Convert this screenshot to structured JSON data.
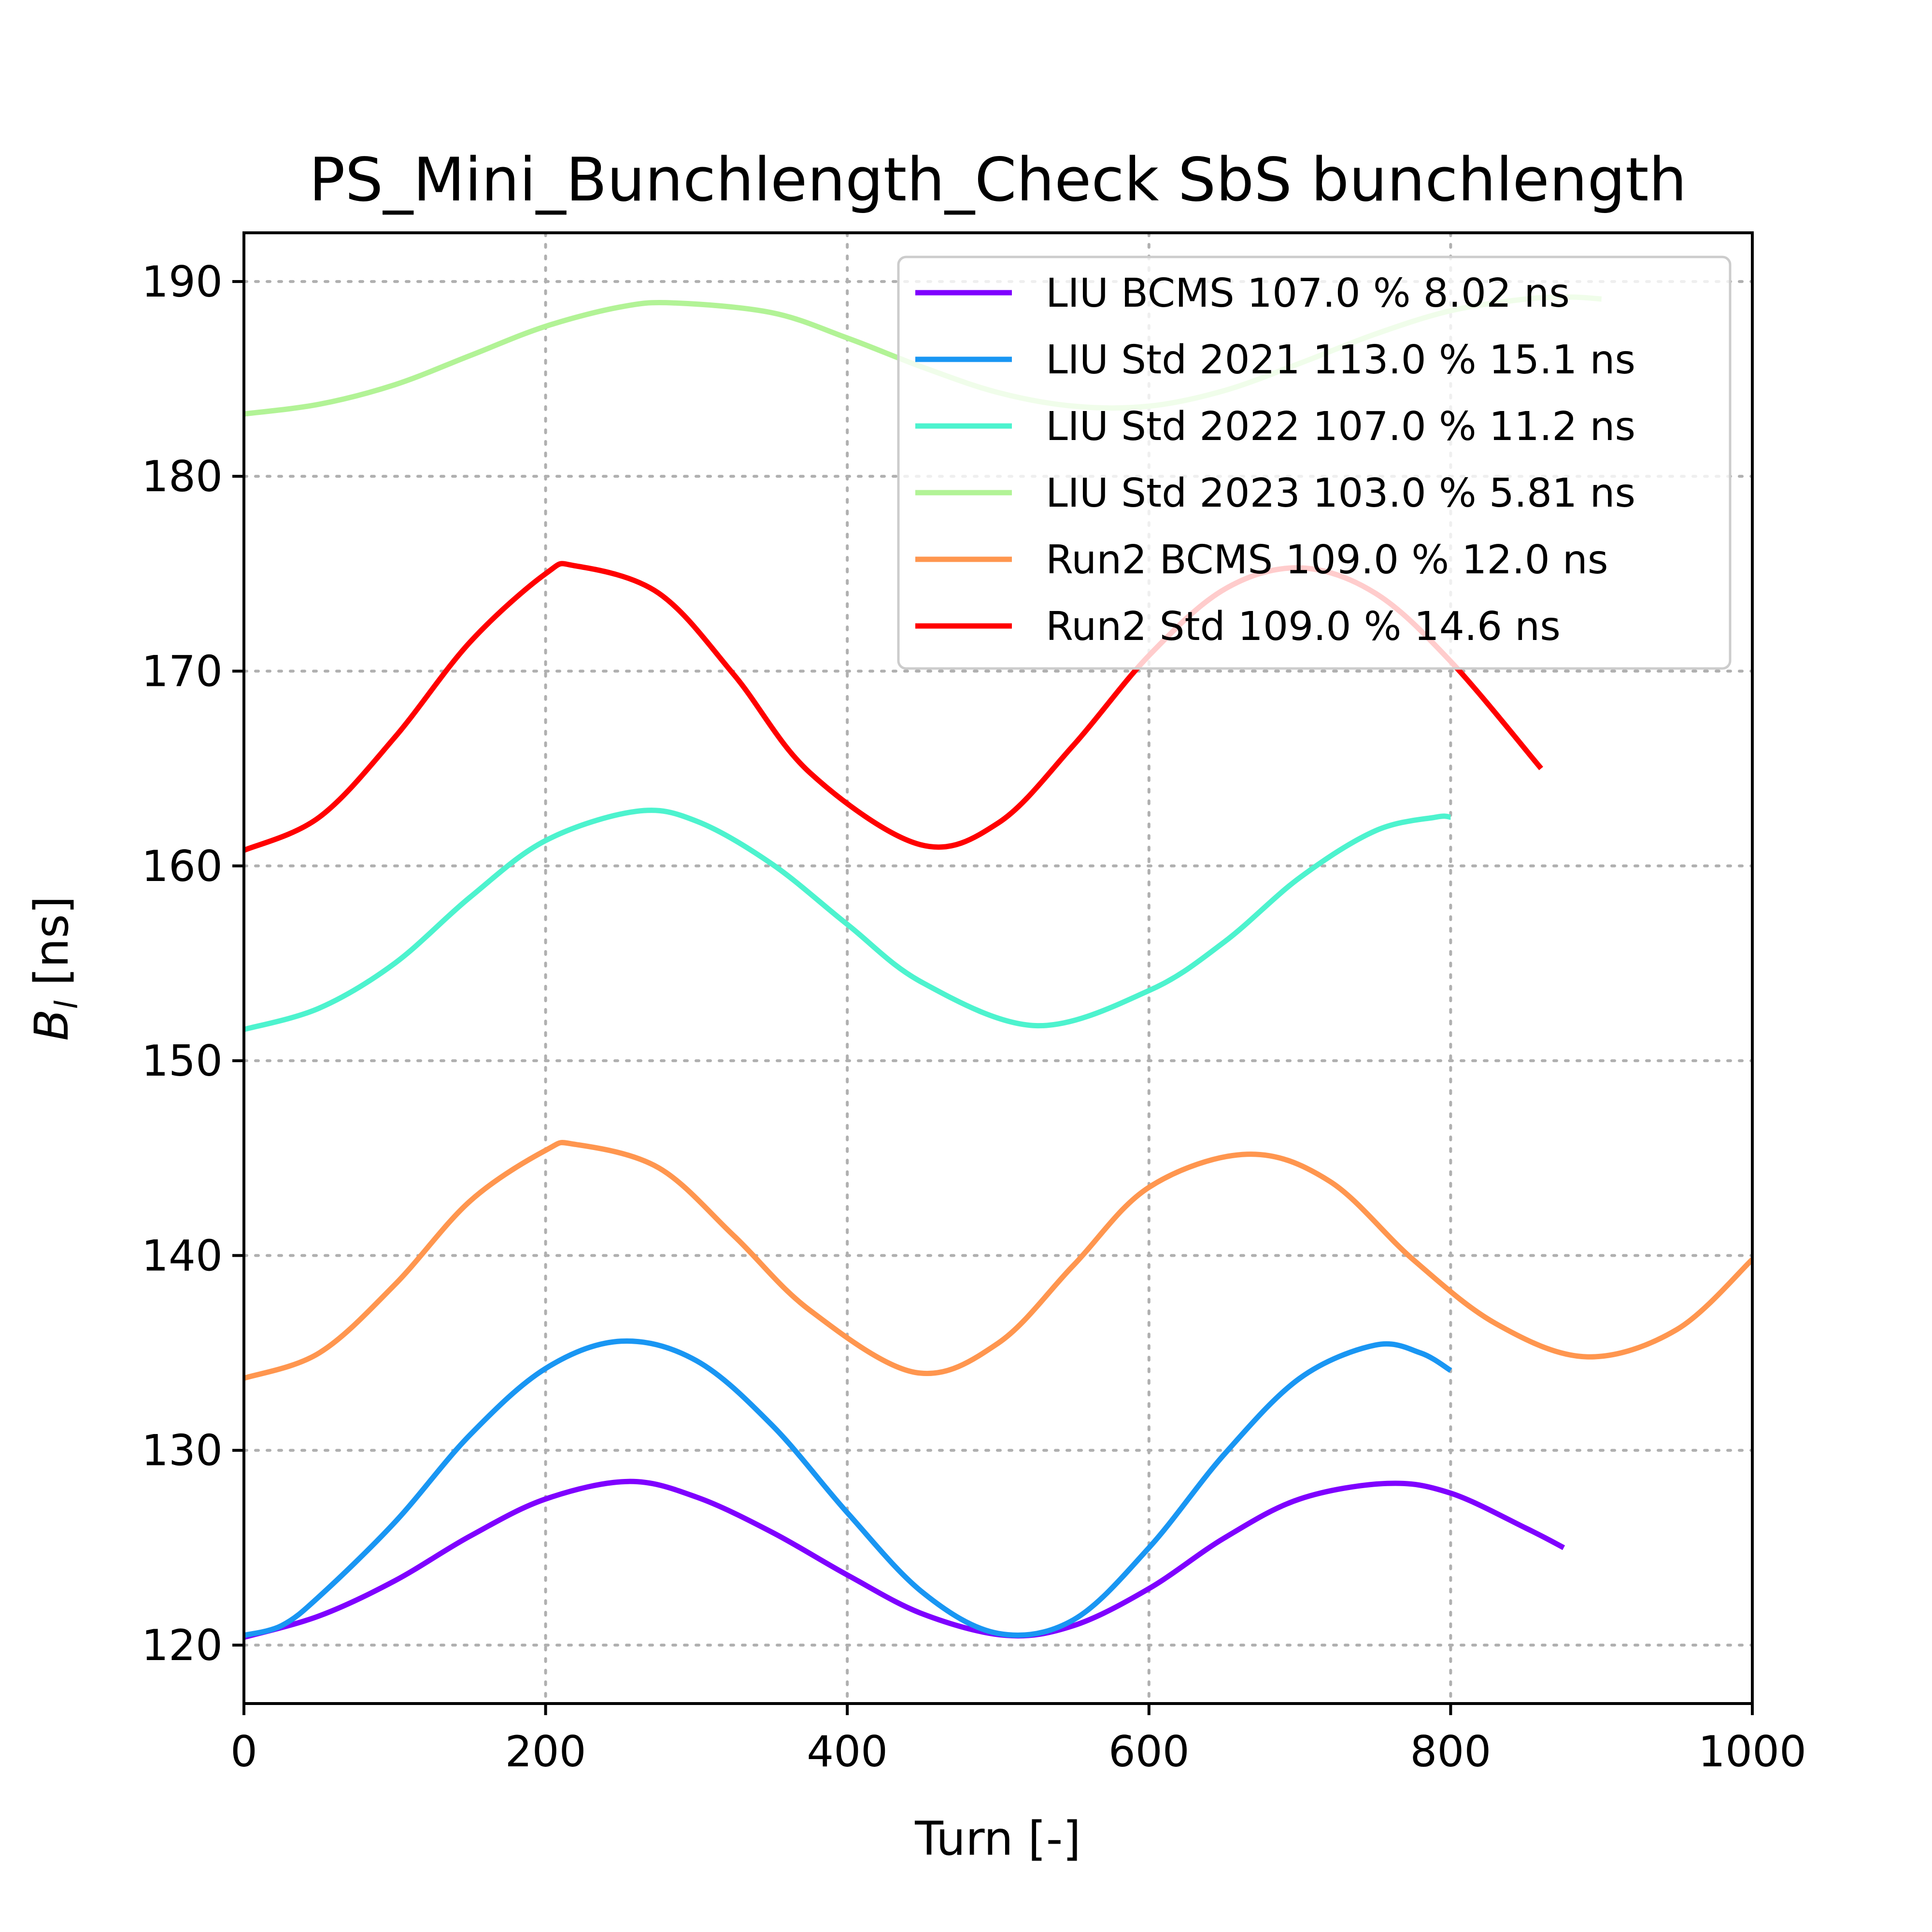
{
  "chart_data": {
    "type": "line",
    "title": "PS_Mini_Bunchlength_Check SbS bunchlength",
    "xlabel": "Turn [-]",
    "ylabel": "B_l [ns]",
    "ylabel_main": "B",
    "ylabel_sub": "l",
    "ylabel_rest": " [ns]",
    "xlim": [
      0,
      1000
    ],
    "ylim": [
      117,
      192.5
    ],
    "xticks": [
      0,
      200,
      400,
      600,
      800,
      1000
    ],
    "yticks": [
      120,
      130,
      140,
      150,
      160,
      170,
      180,
      190
    ],
    "grid": true,
    "legend_position": "top-right",
    "series": [
      {
        "name": "LIU BCMS 107.0 % 8.02 ns",
        "color": "#7f00ff",
        "x": [
          0,
          50,
          100,
          150,
          200,
          255,
          300,
          350,
          400,
          450,
          505,
          550,
          600,
          650,
          700,
          758,
          800,
          850,
          875
        ],
        "y": [
          120.4,
          121.5,
          123.3,
          125.6,
          127.5,
          128.4,
          127.6,
          125.8,
          123.6,
          121.6,
          120.5,
          121.0,
          122.9,
          125.5,
          127.5,
          128.3,
          127.8,
          126.0,
          125.0
        ]
      },
      {
        "name": "LIU Std 2021 113.0 % 15.1 ns",
        "color": "#1996f3",
        "x": [
          0,
          25,
          50,
          100,
          150,
          200,
          250,
          300,
          350,
          400,
          450,
          500,
          550,
          600,
          650,
          700,
          750,
          780,
          800
        ],
        "y": [
          120.5,
          121.0,
          122.5,
          126.3,
          130.8,
          134.2,
          135.6,
          134.6,
          131.3,
          126.8,
          122.7,
          120.6,
          121.3,
          125.0,
          129.8,
          133.7,
          135.4,
          135.0,
          134.1
        ]
      },
      {
        "name": "LIU Std 2022 107.0 % 11.2 ns",
        "color": "#4df3ce",
        "x": [
          0,
          50,
          100,
          150,
          200,
          260,
          300,
          350,
          400,
          450,
          525,
          600,
          650,
          700,
          750,
          790,
          800
        ],
        "y": [
          151.6,
          152.7,
          155.0,
          158.4,
          161.3,
          162.8,
          162.3,
          160.1,
          157.0,
          154.0,
          151.8,
          153.6,
          156.1,
          159.4,
          161.8,
          162.5,
          162.5
        ]
      },
      {
        "name": "LIU Std 2023 103.0 % 5.81 ns",
        "color": "#b2f396",
        "x": [
          0,
          50,
          100,
          150,
          200,
          250,
          285,
          350,
          400,
          450,
          500,
          550,
          600,
          650,
          700,
          750,
          800,
          850,
          880,
          900
        ],
        "y": [
          183.2,
          183.7,
          184.7,
          186.2,
          187.7,
          188.7,
          188.9,
          188.4,
          187.1,
          185.6,
          184.3,
          183.6,
          183.6,
          184.4,
          185.8,
          187.3,
          188.5,
          189.1,
          189.2,
          189.1
        ]
      },
      {
        "name": "Run2 BCMS 109.0 % 12.0 ns",
        "color": "#ff964f",
        "x": [
          0,
          50,
          100,
          150,
          200,
          220,
          275,
          325,
          375,
          445,
          500,
          550,
          600,
          665,
          720,
          775,
          830,
          890,
          950,
          1000
        ],
        "y": [
          133.7,
          135.0,
          138.5,
          142.8,
          145.4,
          145.7,
          144.5,
          141.0,
          137.2,
          134.0,
          135.5,
          139.5,
          143.5,
          145.2,
          143.8,
          139.8,
          136.5,
          134.8,
          136.2,
          139.8
        ]
      },
      {
        "name": "Run2 Std 109.0 % 14.6 ns",
        "color": "#ff0000",
        "x": [
          0,
          50,
          100,
          150,
          200,
          220,
          275,
          325,
          375,
          448,
          500,
          550,
          600,
          650,
          700,
          750,
          800,
          860
        ],
        "y": [
          160.8,
          162.5,
          166.6,
          171.5,
          175.0,
          175.4,
          174.0,
          169.8,
          164.8,
          161.1,
          162.2,
          166.2,
          170.8,
          174.2,
          175.3,
          174.0,
          170.5,
          165.0
        ]
      }
    ]
  }
}
